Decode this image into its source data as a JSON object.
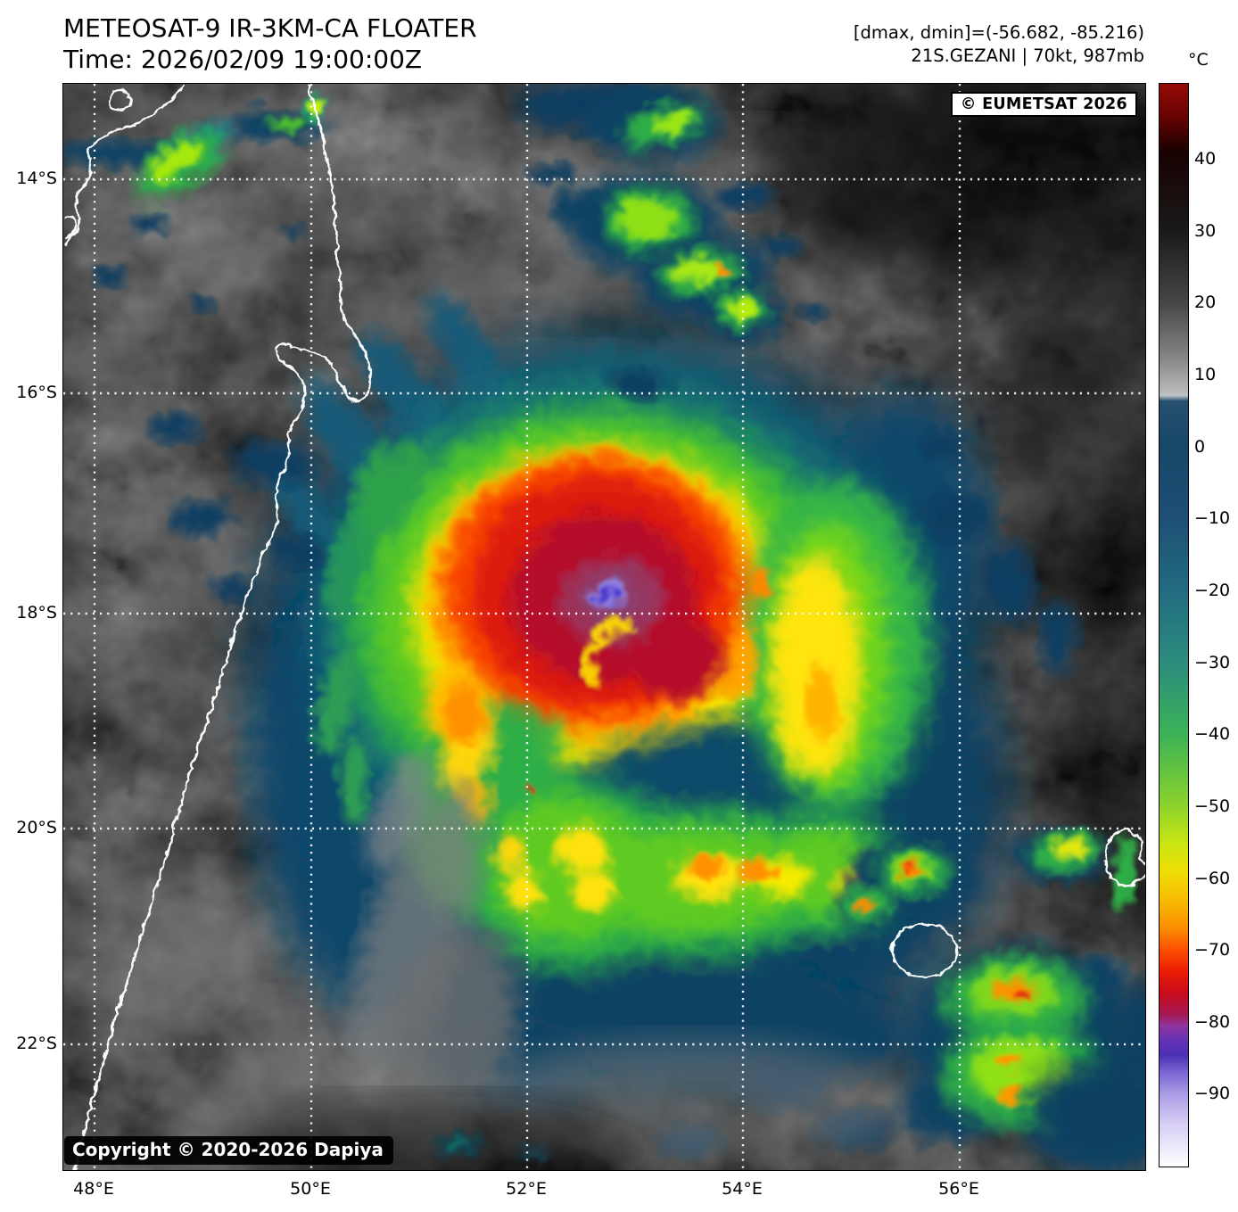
{
  "header": {
    "title": "METEOSAT-9 IR-3KM-CA FLOATER",
    "time": "Time: 2026/02/09 19:00:00Z"
  },
  "annotations": {
    "range": "[dmax, dmin]=(-56.682, -85.216)",
    "storm": "21S.GEZANI | 70kt, 987mb"
  },
  "badges": {
    "provider": "© EUMETSAT 2026",
    "copyright": "Copyright © 2020-2026 Dapiya"
  },
  "axes": {
    "lon_ticks": [
      "48°E",
      "50°E",
      "52°E",
      "54°E",
      "56°E"
    ],
    "lat_ticks": [
      "14°S",
      "16°S",
      "18°S",
      "20°S",
      "22°S"
    ]
  },
  "colorbar": {
    "unit": "°C",
    "tick_labels": [
      "40",
      "30",
      "20",
      "10",
      "0",
      "−10",
      "−20",
      "−30",
      "−40",
      "−50",
      "−60",
      "−70",
      "−80",
      "−90"
    ],
    "stops": [
      [
        "#960b06",
        0
      ],
      [
        "#670302",
        3
      ],
      [
        "#190101",
        6.3
      ],
      [
        "#1a1a1a",
        13.6
      ],
      [
        "#474747",
        20.3
      ],
      [
        "#8a8a8a",
        25.6
      ],
      [
        "#b5b5b5",
        28.2
      ],
      [
        "#bcc2c6",
        28.8
      ],
      [
        "#27506e",
        29.3
      ],
      [
        "#174769",
        33.6
      ],
      [
        "#1e5074",
        40.2
      ],
      [
        "#226b80",
        46.8
      ],
      [
        "#2c8d7e",
        53.5
      ],
      [
        "#3cb257",
        60.1
      ],
      [
        "#8ed32b",
        66.8
      ],
      [
        "#c8e614",
        70.1
      ],
      [
        "#efdf05",
        72.7
      ],
      [
        "#f7bb02",
        75.4
      ],
      [
        "#fb8c00",
        78
      ],
      [
        "#fb4f00",
        80
      ],
      [
        "#ea1c03",
        82
      ],
      [
        "#c90b1d",
        84
      ],
      [
        "#a31a55",
        86
      ],
      [
        "#8f35a0",
        87
      ],
      [
        "#6532b5",
        88.3
      ],
      [
        "#4c30b5",
        89.7
      ],
      [
        "#7a65d2",
        91.3
      ],
      [
        "#ab9ce6",
        93.3
      ],
      [
        "#d6cdf4",
        96
      ],
      [
        "#ffffff",
        100
      ]
    ]
  }
}
